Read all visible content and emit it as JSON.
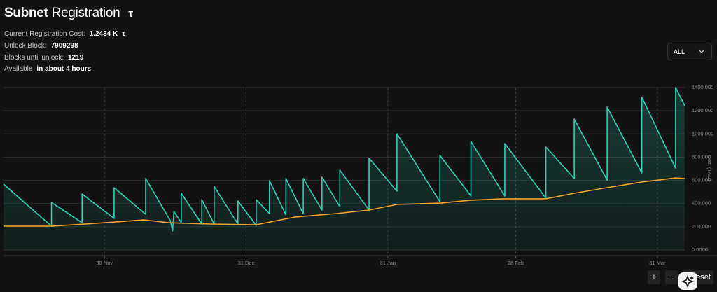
{
  "header": {
    "title_bold": "Subnet",
    "title_rest": "Registration",
    "symbol": "τ"
  },
  "stats": [
    {
      "label": "Current Registration Cost:",
      "value": "1.2434 K",
      "unit": "τ"
    },
    {
      "label": "Unlock Block:",
      "value": "7909298"
    },
    {
      "label": "Blocks until unlock:",
      "value": "1219"
    },
    {
      "label": "Available",
      "value": "in about 4 hours"
    }
  ],
  "controls": {
    "range": "ALL",
    "zoom_in": "+",
    "zoom_out": "−",
    "reset": "Reset"
  },
  "chart_data": {
    "type": "line",
    "y_label": "Cost (TAO)",
    "xlim": [
      -22.1,
      127
    ],
    "xticks": [
      {
        "value": 0,
        "label": "30 Nov"
      },
      {
        "value": 31,
        "label": "31 Dec"
      },
      {
        "value": 62,
        "label": "31 Jan"
      },
      {
        "value": 90,
        "label": "28 Feb"
      },
      {
        "value": 121,
        "label": "31 Mar"
      }
    ],
    "ylim": [
      0,
      1400
    ],
    "yticks": [
      {
        "value": 0,
        "label": "0.0000"
      },
      {
        "value": 200,
        "label": "200.000"
      },
      {
        "value": 400,
        "label": "400.000"
      },
      {
        "value": 600,
        "label": "600.000"
      },
      {
        "value": 800,
        "label": "800.000"
      },
      {
        "value": 1000,
        "label": "1000.000"
      },
      {
        "value": 1200,
        "label": "1200.000"
      },
      {
        "value": 1400,
        "label": "1400.000"
      }
    ],
    "grid": true,
    "series": [
      {
        "color": "#27d3b4",
        "fill": true,
        "x": [
          -22.1,
          -11.6,
          -11.6,
          -4.9,
          -4.9,
          2.1,
          2.1,
          9.0,
          9.0,
          14.4,
          14.9,
          15.2,
          16.8,
          16.8,
          21.3,
          21.3,
          24.0,
          24.0,
          29.2,
          29.2,
          33.2,
          33.2,
          36.1,
          36.1,
          39.7,
          39.7,
          43.5,
          43.5,
          47.6,
          47.6,
          51.5,
          51.5,
          57.9,
          57.9,
          64.0,
          64.0,
          73.4,
          73.4,
          80.2,
          80.2,
          87.6,
          87.6,
          96.6,
          96.6,
          102.8,
          102.8,
          110.0,
          110.0,
          117.6,
          117.6,
          125.0,
          125.0,
          127.0
        ],
        "values": [
          567,
          205,
          410,
          235,
          483,
          272,
          537,
          308,
          616,
          253,
          163,
          332,
          235,
          489,
          223,
          434,
          223,
          549,
          223,
          422,
          211,
          434,
          314,
          597,
          302,
          616,
          314,
          616,
          344,
          628,
          374,
          688,
          344,
          791,
          507,
          1002,
          416,
          815,
          465,
          935,
          465,
          917,
          447,
          887,
          616,
          1128,
          603,
          1231,
          664,
          1316,
          706,
          1400,
          1243
        ]
      },
      {
        "color": "#f0a42c",
        "fill": false,
        "x": [
          -22.1,
          -11.6,
          0.2,
          8.6,
          14.0,
          23.3,
          33.2,
          41.6,
          50.8,
          57.9,
          64.0,
          73.4,
          80.2,
          87.4,
          96.6,
          102.8,
          110.0,
          117.6,
          125.0,
          127.0
        ],
        "values": [
          205,
          205,
          235,
          259,
          235,
          223,
          217,
          283,
          314,
          344,
          392,
          404,
          429,
          441,
          441,
          489,
          537,
          586,
          621,
          615
        ]
      }
    ]
  }
}
